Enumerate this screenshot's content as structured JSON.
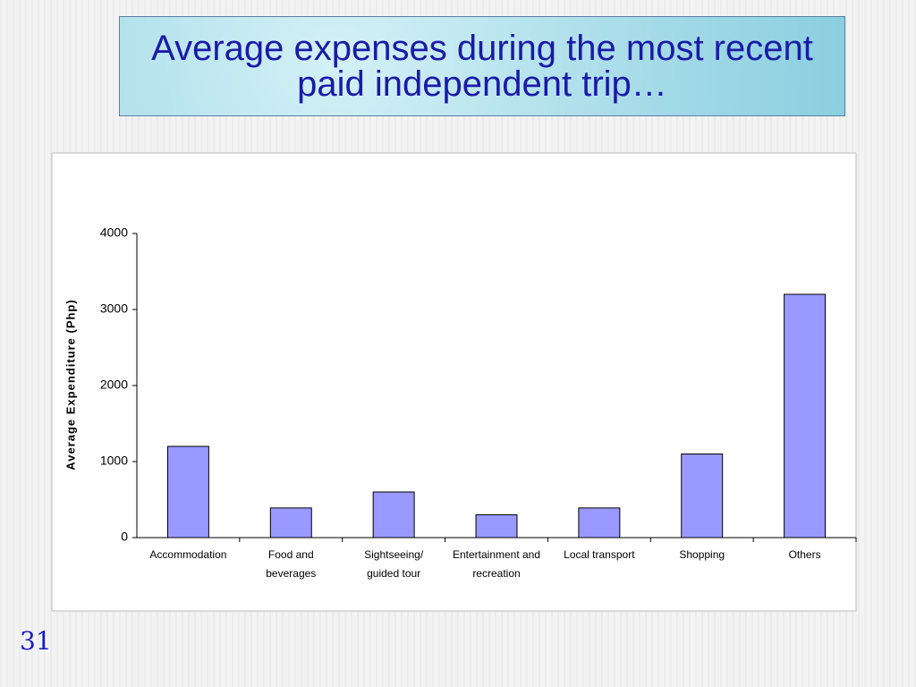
{
  "chart_data": {
    "type": "bar",
    "title": "Average expenses during the most recent paid independent trip…",
    "y_label": "Average Expenditure (Php)",
    "categories": [
      [
        "Accommodation"
      ],
      [
        "Food and",
        "beverages"
      ],
      [
        "Sightseeing/",
        "guided tour"
      ],
      [
        "Entertainment and",
        "recreation"
      ],
      [
        "Local transport"
      ],
      [
        "Shopping"
      ],
      [
        "Others"
      ]
    ],
    "values": [
      1200,
      390,
      600,
      300,
      390,
      1100,
      3200
    ],
    "color": "#9999ff",
    "ylim": [
      0,
      4000
    ],
    "yticks": [
      0,
      1000,
      2000,
      3000,
      4000
    ],
    "grid": false
  },
  "page_number": "31"
}
